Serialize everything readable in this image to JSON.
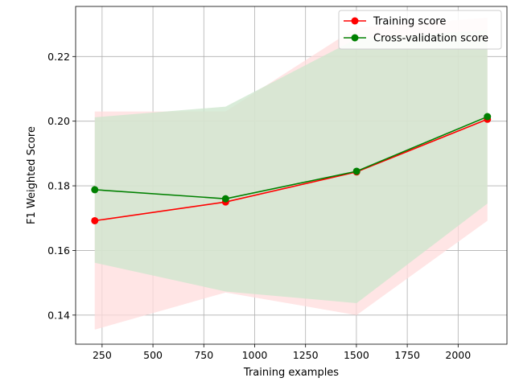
{
  "chart_data": {
    "type": "line",
    "title": "",
    "xlabel": "Training examples",
    "ylabel": "F1 Weighted Score",
    "xlim": [
      120,
      2240
    ],
    "ylim": [
      0.131,
      0.2355
    ],
    "grid": true,
    "legend_position": "top-right",
    "x_ticks": [
      250,
      500,
      750,
      1000,
      1250,
      1500,
      1750,
      2000
    ],
    "x_tick_labels": [
      "250",
      "500",
      "750",
      "1000",
      "1250",
      "1500",
      "1750",
      "2000"
    ],
    "y_ticks": [
      0.14,
      0.16,
      0.18,
      0.2,
      0.22
    ],
    "y_tick_labels": [
      "0.14",
      "0.16",
      "0.18",
      "0.20",
      "0.22"
    ],
    "x": [
      214,
      857,
      1501,
      2144
    ],
    "series": [
      {
        "name": "Training score",
        "color": "#ff0000",
        "band_color": "#ffdcdc",
        "values": [
          0.1692,
          0.175,
          0.1843,
          0.2006
        ],
        "band_lower": [
          0.1355,
          0.147,
          0.14,
          0.1692
        ],
        "band_upper": [
          0.203,
          0.203,
          0.229,
          0.232
        ]
      },
      {
        "name": "Cross-validation score",
        "color": "#008000",
        "band_color": "#cce6cc",
        "values": [
          0.1788,
          0.176,
          0.1845,
          0.2014
        ],
        "band_lower": [
          0.1562,
          0.1473,
          0.1437,
          0.1745
        ],
        "band_upper": [
          0.2012,
          0.2045,
          0.2255,
          0.2282
        ]
      }
    ]
  }
}
